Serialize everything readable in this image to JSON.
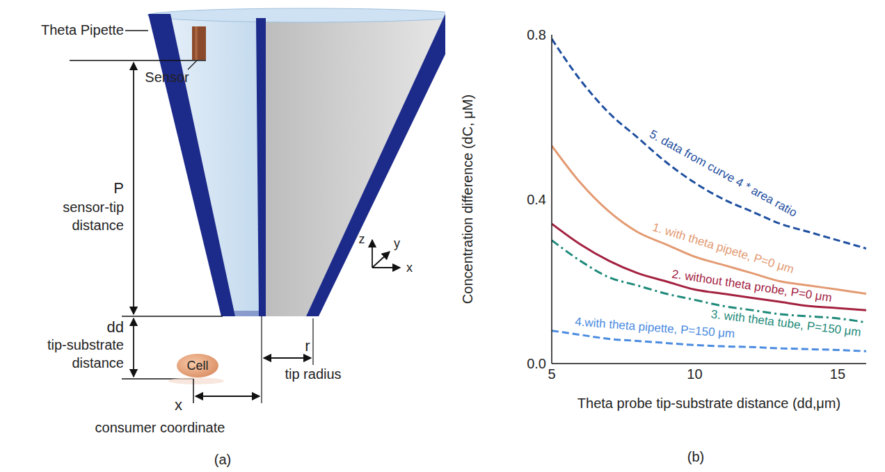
{
  "panels": [
    "(a)",
    "(b)"
  ],
  "diagram": {
    "pipette": "Theta Pipette",
    "sensor": "Sensor",
    "sensor_tip": {
      "symbol": "P",
      "lines": [
        "sensor-tip",
        "distance"
      ]
    },
    "tip_substrate": {
      "symbol": "dd",
      "lines": [
        "tip-substrate",
        "distance"
      ]
    },
    "cell": "Cell",
    "consumer": {
      "symbol": "x",
      "label": "consumer coordinate"
    },
    "tip_radius": {
      "symbol": "r",
      "label": "tip radius"
    },
    "axes": [
      "z",
      "y",
      "x"
    ]
  },
  "chart_data": {
    "type": "line",
    "x_label": "Theta probe tip-substrate distance (dd,μm)",
    "y_label": "Concentration difference (dC, μM)",
    "x": [
      5,
      6,
      7,
      8,
      9,
      10,
      11,
      12,
      13,
      14,
      15,
      16
    ],
    "series": [
      {
        "name": "5. data from curve 4 * area ratio",
        "color": "#1f4fa0",
        "line_style": "dashed",
        "values": [
          0.79,
          0.69,
          0.61,
          0.55,
          0.49,
          0.44,
          0.4,
          0.37,
          0.34,
          0.32,
          0.3,
          0.28
        ]
      },
      {
        "name": "1. with theta pipete, P=0 μm",
        "color": "#e39a72",
        "line_style": "solid",
        "values": [
          0.53,
          0.44,
          0.37,
          0.32,
          0.29,
          0.26,
          0.24,
          0.22,
          0.2,
          0.19,
          0.18,
          0.17
        ]
      },
      {
        "name": "2. without theta probe, P=0 μm",
        "color": "#a3213f",
        "line_style": "solid",
        "values": [
          0.34,
          0.29,
          0.25,
          0.22,
          0.2,
          0.18,
          0.17,
          0.16,
          0.15,
          0.14,
          0.135,
          0.13
        ]
      },
      {
        "name": "3. with theta tube, P=150 μm",
        "color": "#1d8a7a",
        "line_style": "dashdot",
        "values": [
          0.3,
          0.25,
          0.21,
          0.19,
          0.17,
          0.155,
          0.14,
          0.13,
          0.12,
          0.115,
          0.11,
          0.1
        ]
      },
      {
        "name": "4.with theta pipette, P=150 μm",
        "color": "#4a8be0",
        "line_style": "dashed",
        "values": [
          0.08,
          0.07,
          0.06,
          0.055,
          0.05,
          0.045,
          0.042,
          0.04,
          0.037,
          0.035,
          0.033,
          0.03
        ]
      }
    ],
    "xlim": [
      5,
      16
    ],
    "xticks": [
      5,
      10,
      15
    ],
    "ylim": [
      0,
      0.8
    ],
    "yticks": [
      {
        "value": 0,
        "label": "0.0"
      },
      {
        "value": 0.4,
        "label": "0.4"
      },
      {
        "value": 0.8,
        "label": "0.8"
      }
    ],
    "grid": false
  }
}
